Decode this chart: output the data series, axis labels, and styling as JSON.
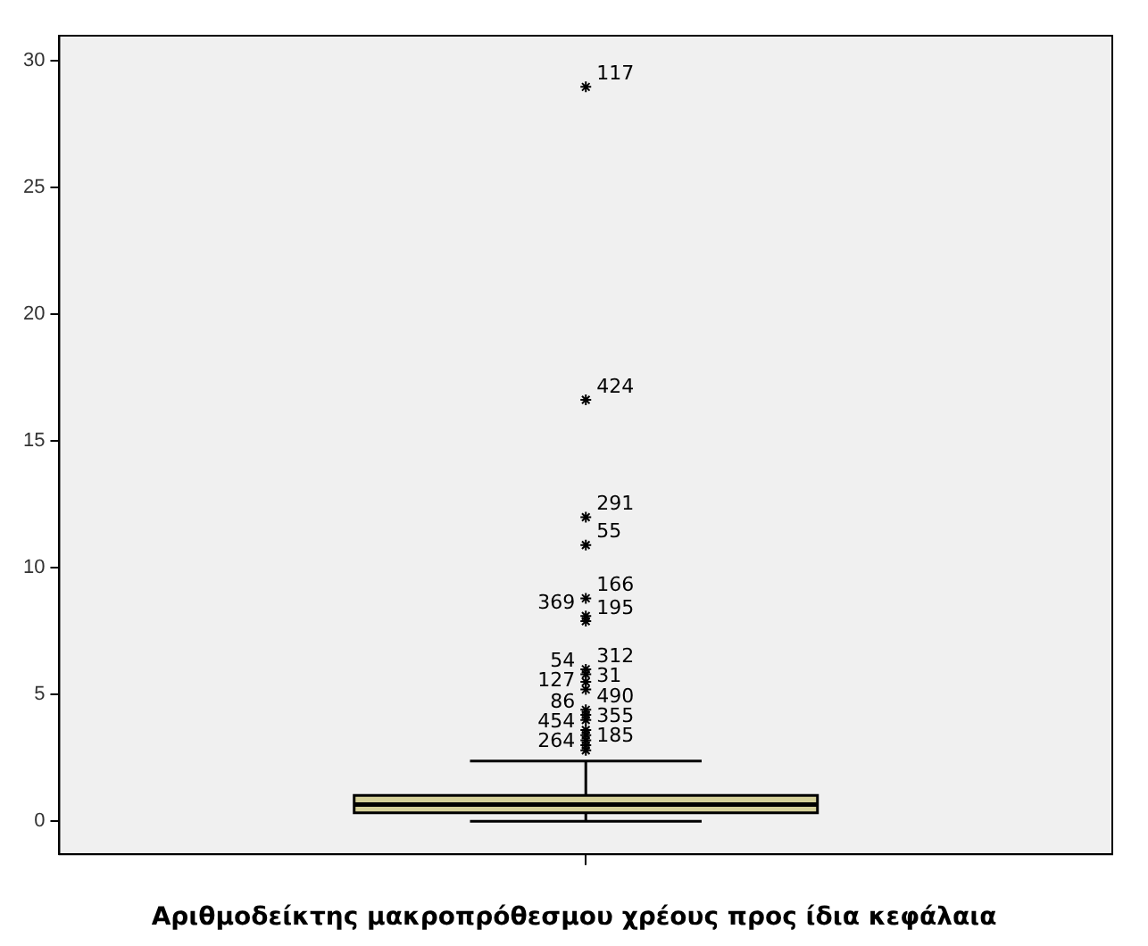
{
  "chart_data": {
    "type": "box",
    "xlabel": "Αριθμοδείκτης μακροπρόθεσμου χρέους προς ίδια κεφάλαια",
    "categories": [
      null
    ],
    "boxes": [
      {
        "low": 0,
        "q1": 0.34,
        "median": 0.66,
        "q3": 1.02,
        "high": 2.38,
        "outliers": [
          28.98,
          16.63,
          12.0,
          10.9,
          8.8,
          8.1,
          7.9,
          6.0,
          5.8,
          5.5,
          5.2,
          4.4,
          4.2,
          4.0,
          3.6,
          3.4,
          3.2,
          3.0,
          2.8
        ]
      }
    ],
    "color": "#d4cf98",
    "marker": "star",
    "legend": false,
    "grid": false,
    "tick_labels": "y",
    "ylim": [
      -1.3,
      31
    ],
    "yticks": [
      0,
      5,
      10,
      15,
      20,
      25,
      30
    ],
    "annotations": [
      "117",
      "424",
      "291",
      "55",
      "166",
      "369",
      "195",
      "312",
      "54",
      "31",
      "127",
      "490",
      "86",
      "355",
      "454",
      "185",
      "264"
    ]
  }
}
